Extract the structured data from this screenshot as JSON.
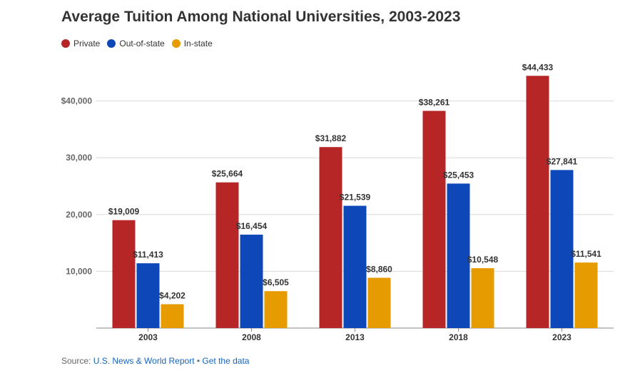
{
  "title": "Average Tuition Among National Universities, 2003-2023",
  "legend": [
    {
      "label": "Private",
      "color": "#b72626"
    },
    {
      "label": "Out-of-state",
      "color": "#0d47b8"
    },
    {
      "label": "In-state",
      "color": "#e69b00"
    }
  ],
  "chart_data": {
    "type": "bar",
    "title": "Average Tuition Among National Universities, 2003-2023",
    "xlabel": "",
    "ylabel": "",
    "categories": [
      "2003",
      "2008",
      "2013",
      "2018",
      "2023"
    ],
    "ylim": [
      0,
      50000
    ],
    "yticks": [
      10000,
      20000,
      30000,
      40000
    ],
    "ytick_labels": [
      "10,000",
      "20,000",
      "30,000",
      "$40,000"
    ],
    "grid": true,
    "legend_position": "top-left",
    "series": [
      {
        "name": "Private",
        "color": "#b72626",
        "values": [
          19009,
          25664,
          31882,
          38261,
          44433
        ],
        "labels": [
          "$19,009",
          "$25,664",
          "$31,882",
          "$38,261",
          "$44,433"
        ]
      },
      {
        "name": "Out-of-state",
        "color": "#0d47b8",
        "values": [
          11413,
          16454,
          21539,
          25453,
          27841
        ],
        "labels": [
          "$11,413",
          "$16,454",
          "$21,539",
          "$25,453",
          "$27,841"
        ]
      },
      {
        "name": "In-state",
        "color": "#e69b00",
        "values": [
          4202,
          6505,
          8860,
          10548,
          11541
        ],
        "labels": [
          "$4,202",
          "$6,505",
          "$8,860",
          "$10,548",
          "$11,541"
        ]
      }
    ]
  },
  "footer": {
    "prefix": "Source: ",
    "source_link": "U.S. News & World Report",
    "separator": " • ",
    "data_link": "Get the data"
  }
}
